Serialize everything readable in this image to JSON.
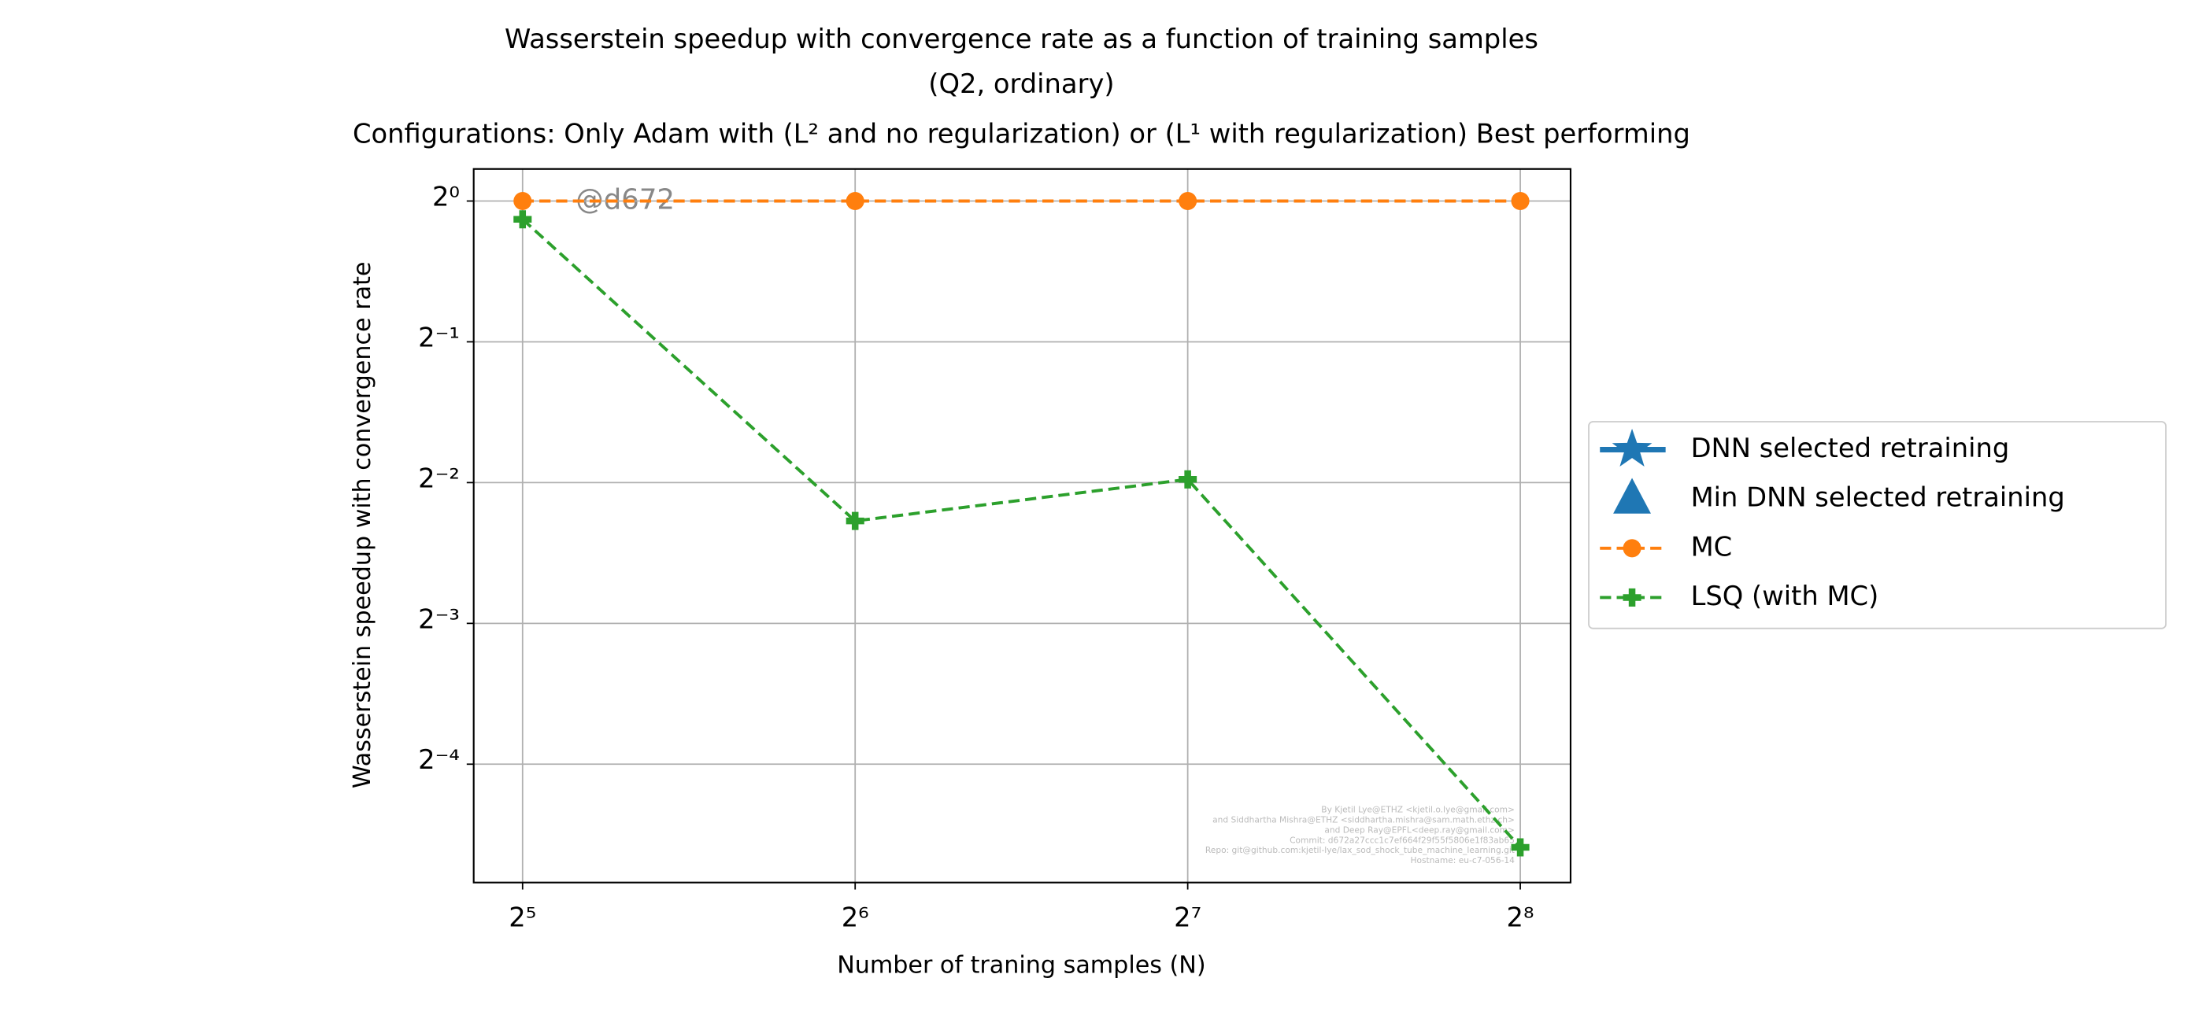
{
  "chart_data": {
    "type": "line",
    "title": [
      "Wasserstein speedup with convergence rate as a function of training samples",
      "(Q2, ordinary)",
      "Configurations: Only Adam with (L² and no regularization) or (L¹ with regularization) Best performing"
    ],
    "xlabel": "Number of traning samples (N)",
    "ylabel": "Wasserstein speedup with convergence rate",
    "x": [
      32,
      64,
      128,
      256
    ],
    "xscale": "log2",
    "yscale": "log2",
    "xlim": [
      28.9,
      284.3
    ],
    "ylim": [
      0.0349,
      1.171
    ],
    "xticks": [
      {
        "value": 32,
        "label": "2⁵"
      },
      {
        "value": 64,
        "label": "2⁶"
      },
      {
        "value": 128,
        "label": "2⁷"
      },
      {
        "value": 256,
        "label": "2⁸"
      }
    ],
    "yticks": [
      {
        "value": 1,
        "label": "2⁰"
      },
      {
        "value": 0.5,
        "label": "2⁻¹"
      },
      {
        "value": 0.25,
        "label": "2⁻²"
      },
      {
        "value": 0.125,
        "label": "2⁻³"
      },
      {
        "value": 0.0625,
        "label": "2⁻⁴"
      }
    ],
    "grid": true,
    "legend": "outside right",
    "series": [
      {
        "name": "DNN selected retraining",
        "color": "#1f77b4",
        "marker": "star",
        "linestyle": "solid",
        "values": [
          null,
          null,
          null,
          null
        ]
      },
      {
        "name": "Min DNN selected retraining",
        "color": "#1f77b4",
        "marker": "triangle",
        "linestyle": "none",
        "values": [
          null,
          null,
          null,
          null
        ]
      },
      {
        "name": "MC",
        "color": "#ff7f0e",
        "marker": "circle",
        "linestyle": "dashed",
        "values": [
          1,
          1,
          1,
          1
        ]
      },
      {
        "name": "LSQ (with MC)",
        "color": "#2ca02c",
        "marker": "plus",
        "linestyle": "dashed",
        "values": [
          0.914,
          0.207,
          0.254,
          0.0415
        ]
      }
    ],
    "annotations": [
      "@d672"
    ],
    "footnote": [
      "By Kjetil Lye@ETHZ <kjetil.o.lye@gmail.com>",
      "and Siddhartha Mishra@ETHZ <siddhartha.mishra@sam.math.ethz.ch>",
      "and Deep Ray@EPFL<deep.ray@gmail.com>",
      "Commit: d672a27ccc1c7ef664f29f55f5806e1f83ab65",
      "Repo: git@github.com:kjetil-lye/lax_sod_shock_tube_machine_learning.git",
      "Hostname: eu-c7-056-14"
    ]
  }
}
